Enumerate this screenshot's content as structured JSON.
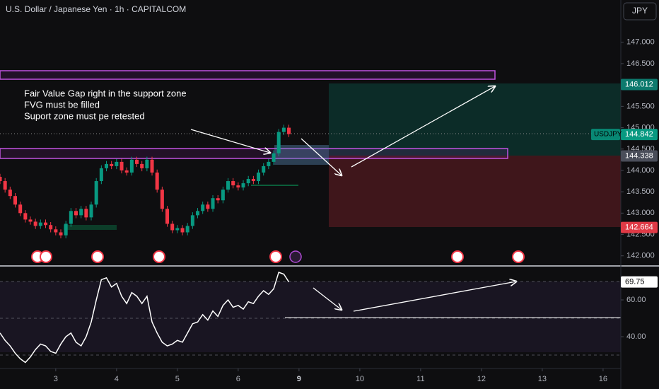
{
  "header": {
    "title": "U.S. Dollar / Japanese Yen · 1h · CAPITALCOM",
    "currency": "JPY"
  },
  "annotation": [
    "Fair Value Gap right in the support zone",
    "FVG must be filled",
    "Suport zone must pe retested"
  ],
  "chart_data": [
    {
      "type": "candlestick",
      "symbol": "USDJPY",
      "up_color": "#089981",
      "down_color": "#f23645",
      "x": [
        0,
        2,
        4,
        6,
        8,
        10,
        12,
        14,
        16,
        18,
        20,
        22,
        24,
        26,
        28,
        30,
        32,
        34,
        36,
        38,
        40,
        42,
        44,
        46,
        48,
        50,
        52,
        54,
        56,
        58,
        60,
        62,
        64,
        66,
        68,
        70,
        72,
        74,
        76,
        78,
        80,
        82,
        84,
        86,
        88,
        90,
        92,
        94,
        96,
        98,
        100,
        102,
        104,
        106,
        108,
        110,
        112,
        114
      ],
      "open": [
        143.85,
        143.75,
        143.55,
        143.4,
        143.2,
        143.0,
        142.85,
        142.8,
        142.7,
        142.78,
        142.72,
        142.62,
        142.55,
        142.48,
        142.75,
        143.05,
        142.95,
        143.1,
        142.9,
        143.2,
        143.75,
        144.05,
        144.15,
        144.1,
        144.2,
        144.0,
        143.95,
        144.25,
        144.15,
        144.05,
        144.25,
        143.95,
        143.55,
        143.1,
        142.75,
        142.6,
        142.65,
        142.55,
        142.7,
        142.95,
        143.05,
        143.2,
        143.1,
        143.35,
        143.3,
        143.55,
        143.75,
        143.65,
        143.6,
        143.7,
        143.8,
        143.75,
        143.95,
        144.1,
        144.2,
        144.4,
        144.9,
        145.0
      ],
      "high": [
        143.92,
        143.82,
        143.62,
        143.47,
        143.27,
        143.07,
        142.92,
        142.87,
        142.85,
        142.85,
        142.79,
        142.69,
        142.62,
        142.82,
        143.12,
        143.12,
        143.17,
        143.17,
        143.27,
        143.82,
        144.12,
        144.22,
        144.22,
        144.27,
        144.27,
        144.07,
        144.32,
        144.32,
        144.22,
        144.32,
        144.32,
        144.02,
        143.62,
        143.17,
        142.82,
        142.72,
        142.72,
        142.77,
        143.02,
        143.12,
        143.27,
        143.27,
        143.42,
        143.42,
        143.62,
        143.82,
        143.82,
        143.72,
        143.77,
        143.87,
        143.87,
        144.02,
        144.17,
        144.27,
        144.47,
        144.97,
        145.07,
        145.07
      ],
      "low": [
        143.68,
        143.48,
        143.33,
        143.13,
        142.93,
        142.78,
        142.73,
        142.63,
        142.63,
        142.65,
        142.55,
        142.48,
        142.41,
        142.41,
        142.68,
        142.88,
        142.88,
        142.83,
        142.83,
        143.13,
        143.68,
        143.98,
        144.03,
        144.03,
        143.93,
        143.88,
        143.88,
        144.08,
        143.98,
        143.98,
        143.88,
        143.48,
        143.03,
        142.68,
        142.53,
        142.53,
        142.48,
        142.48,
        142.63,
        142.88,
        142.98,
        143.03,
        143.03,
        143.23,
        143.23,
        143.48,
        143.58,
        143.53,
        143.53,
        143.63,
        143.68,
        143.68,
        143.88,
        144.03,
        144.13,
        144.33,
        144.83,
        144.78
      ],
      "close": [
        143.75,
        143.55,
        143.4,
        143.2,
        143.0,
        142.85,
        142.8,
        142.7,
        142.78,
        142.72,
        142.62,
        142.55,
        142.48,
        142.75,
        143.05,
        142.95,
        143.1,
        142.9,
        143.2,
        143.75,
        144.05,
        144.15,
        144.1,
        144.2,
        144.0,
        143.95,
        144.25,
        144.15,
        144.05,
        144.25,
        143.95,
        143.55,
        143.1,
        142.75,
        142.6,
        142.65,
        142.55,
        142.7,
        142.95,
        143.05,
        143.2,
        143.1,
        143.35,
        143.3,
        143.55,
        143.75,
        143.65,
        143.6,
        143.7,
        143.8,
        143.75,
        143.95,
        144.1,
        144.2,
        144.4,
        144.9,
        145.0,
        144.85
      ],
      "xlim": [
        0,
        245
      ],
      "xticks": [
        {
          "value": 22,
          "label": "3"
        },
        {
          "value": 46,
          "label": "4"
        },
        {
          "value": 70,
          "label": "5"
        },
        {
          "value": 94,
          "label": "6"
        },
        {
          "value": 118,
          "label": "9"
        },
        {
          "value": 142,
          "label": "10"
        },
        {
          "value": 166,
          "label": "11"
        },
        {
          "value": 190,
          "label": "12"
        },
        {
          "value": 214,
          "label": "13"
        },
        {
          "value": 238,
          "label": "16"
        }
      ],
      "ylim": [
        141.78,
        147.99
      ],
      "yticks": [
        {
          "value": 142,
          "label": "142.000"
        },
        {
          "value": 142.5,
          "label": "142.500"
        },
        {
          "value": 143,
          "label": "143.000"
        },
        {
          "value": 143.5,
          "label": "143.500"
        },
        {
          "value": 144,
          "label": "144.000"
        },
        {
          "value": 144.5,
          "label": "144.500"
        },
        {
          "value": 145,
          "label": "145.000"
        },
        {
          "value": 145.5,
          "label": "145.500"
        },
        {
          "value": 146,
          "label": "146.000"
        },
        {
          "value": 146.5,
          "label": "146.500"
        },
        {
          "value": 147,
          "label": "147.000"
        }
      ],
      "price_labels": [
        {
          "value": 146.012,
          "label": "146.012",
          "color": "#0d7a6e"
        },
        {
          "value": 144.842,
          "label": "144.842",
          "color": "#089981"
        },
        {
          "value": 144.338,
          "label": "144.338",
          "color": "#4a4e5a"
        },
        {
          "value": 142.664,
          "label": "142.664",
          "color": "#e03a46"
        }
      ]
    },
    {
      "type": "line",
      "color": "#ffffff",
      "x": [
        0,
        2,
        4,
        6,
        8,
        10,
        12,
        14,
        16,
        18,
        20,
        22,
        24,
        26,
        28,
        30,
        32,
        34,
        36,
        38,
        40,
        42,
        44,
        46,
        48,
        50,
        52,
        54,
        56,
        58,
        60,
        62,
        64,
        66,
        68,
        70,
        72,
        74,
        76,
        78,
        80,
        82,
        84,
        86,
        88,
        90,
        92,
        94,
        96,
        98,
        100,
        102,
        104,
        106,
        108,
        110,
        112,
        114
      ],
      "values": [
        42,
        38,
        35,
        31,
        28,
        26,
        29,
        33,
        36,
        35,
        32,
        31,
        36,
        40,
        42,
        37,
        35,
        40,
        48,
        60,
        71,
        72,
        67,
        69,
        62,
        58,
        64,
        62,
        58,
        62,
        48,
        42,
        37,
        35,
        36,
        38,
        37,
        42,
        47,
        48,
        52,
        49,
        54,
        51,
        57,
        60,
        56,
        57,
        55,
        59,
        58,
        62,
        65,
        63,
        66,
        75,
        74,
        69.75
      ],
      "xlim": [
        0,
        245
      ],
      "ylim": [
        23.1,
        77.7
      ],
      "yticks": [
        {
          "value": 40,
          "label": "40.00"
        },
        {
          "value": 60,
          "label": "60.00"
        }
      ],
      "levels": [
        70,
        50,
        30
      ],
      "price_labels": [
        {
          "value": 69.75,
          "label": "69.75",
          "color": "#ffffff"
        }
      ]
    }
  ]
}
